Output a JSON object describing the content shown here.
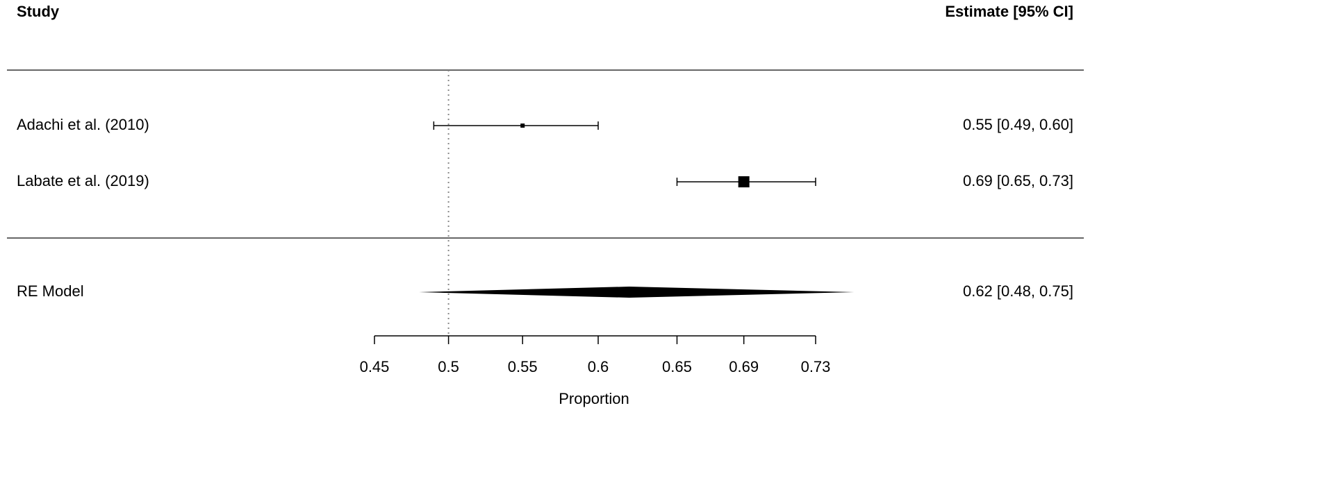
{
  "chart_data": {
    "type": "forest",
    "headers": [
      "Study",
      "Estimate [95% CI]"
    ],
    "xlabel": "Proportion",
    "xscale": "logit",
    "xlim": [
      0.45,
      0.73
    ],
    "xticks": [
      0.45,
      0.5,
      0.55,
      0.6,
      0.65,
      0.69,
      0.73
    ],
    "refline": 0.5,
    "color": "#000000",
    "studies": {
      "names": [
        "Adachi et al. (2010)",
        "Labate et al. (2019)"
      ],
      "values": [
        0.55,
        0.69
      ],
      "ci_lower": [
        0.49,
        0.65
      ],
      "ci_upper": [
        0.6,
        0.73
      ],
      "value_labels": [
        "0.55 [0.49, 0.60]",
        "0.69 [0.65, 0.73]"
      ],
      "point_sizes": [
        6,
        16
      ]
    },
    "summary": {
      "name": "RE Model",
      "value": 0.62,
      "ci_lower": 0.48,
      "ci_upper": 0.75,
      "value_label": "0.62 [0.48, 0.75]"
    }
  }
}
